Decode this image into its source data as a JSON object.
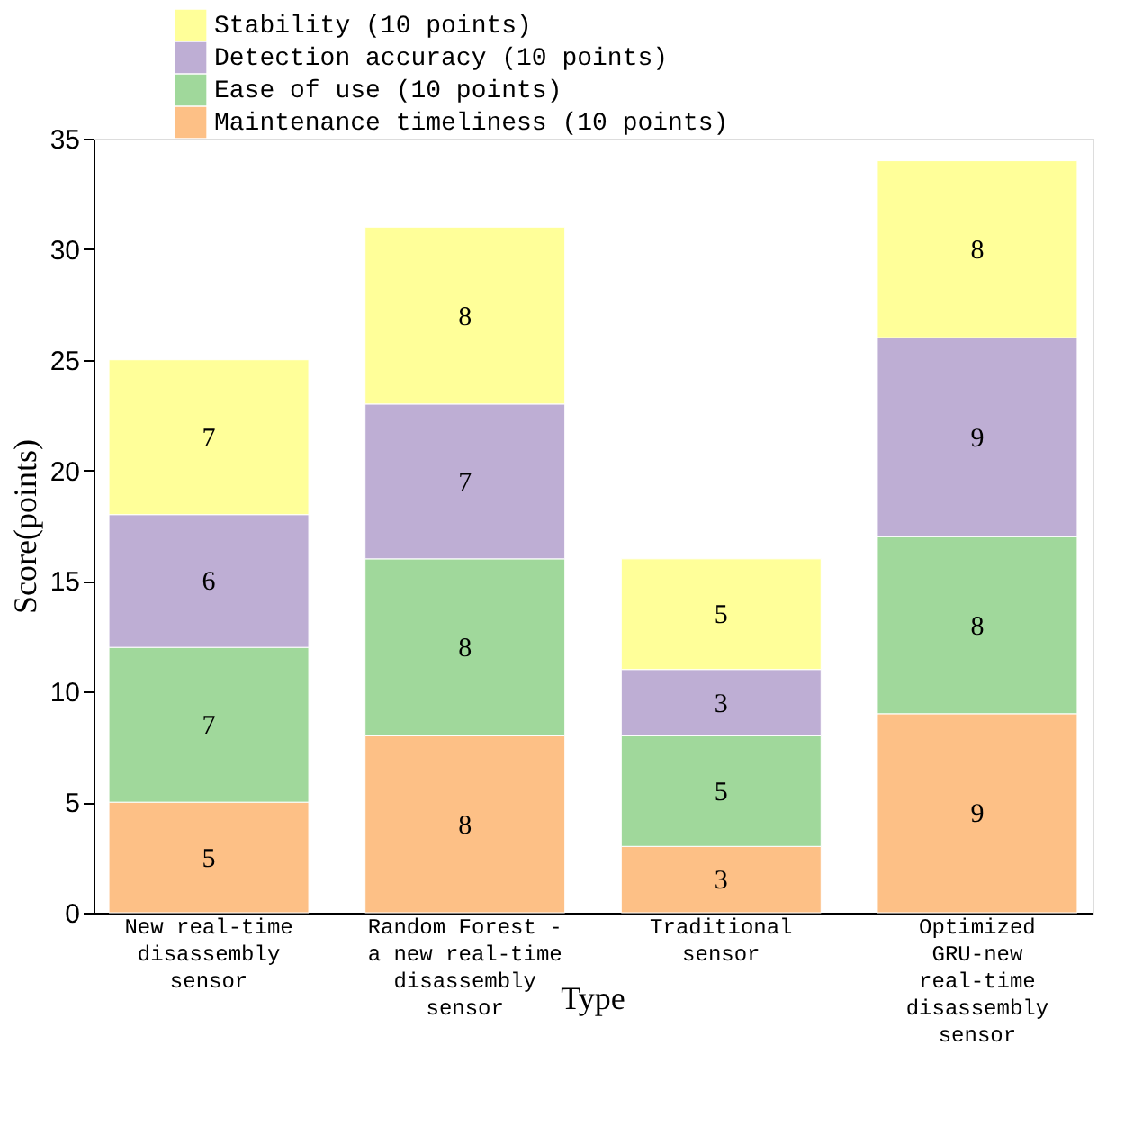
{
  "chart_data": {
    "type": "bar",
    "stacked": true,
    "xlabel": "Type",
    "ylabel": "Score(points)",
    "categories": [
      "New real-time disassembly sensor",
      "Random Forest - a new real-time disassembly sensor",
      "Traditional sensor",
      "Optimized GRU-new real-time disassembly sensor"
    ],
    "series": [
      {
        "name": "Maintenance timeliness (10 points)",
        "color": "#fdc086",
        "values": [
          5,
          8,
          3,
          9
        ]
      },
      {
        "name": "Ease of use (10 points)",
        "color": "#a0d89b",
        "values": [
          7,
          8,
          5,
          8
        ]
      },
      {
        "name": "Detection accuracy (10 points)",
        "color": "#beaed4",
        "values": [
          6,
          7,
          3,
          9
        ]
      },
      {
        "name": "Stability (10 points)",
        "color": "#ffff99",
        "values": [
          7,
          8,
          5,
          8
        ]
      }
    ],
    "ylim": [
      0,
      35
    ],
    "yticks": [
      0,
      5,
      10,
      15,
      20,
      25,
      30,
      35
    ],
    "grid": false,
    "legend": "top left",
    "data_labels": true
  }
}
